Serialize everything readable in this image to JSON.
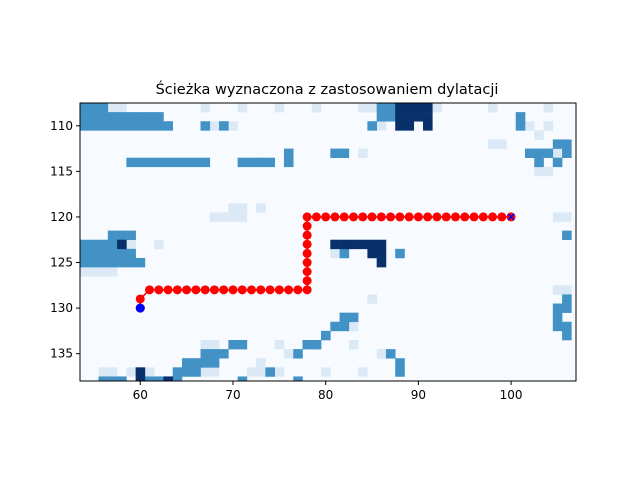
{
  "chart_data": {
    "type": "heatmap",
    "title": "Ścieżka wyznaczona z zastosowaniem dylatacji",
    "xlabel": "",
    "ylabel": "",
    "xlim": [
      53.5,
      107
    ],
    "ylim": [
      138,
      107.5
    ],
    "x_ticks": [
      60,
      70,
      80,
      90,
      100
    ],
    "y_ticks": [
      110,
      115,
      120,
      125,
      130,
      135
    ],
    "grid": false,
    "colormap": "Blues",
    "colors": {
      "background": "#f7fbff",
      "light": "#dbe9f6",
      "medium": "#4292c6",
      "dark": "#08306b",
      "path": "#ff0000",
      "start": "#0000ff",
      "goal": "#0000ff"
    },
    "cells": {
      "light": [
        [
          56,
          108
        ],
        [
          57,
          108
        ],
        [
          58,
          108
        ],
        [
          67,
          108
        ],
        [
          71,
          108
        ],
        [
          75,
          108
        ],
        [
          79,
          108
        ],
        [
          84,
          108
        ],
        [
          85,
          108
        ],
        [
          87,
          108
        ],
        [
          92,
          108
        ],
        [
          98,
          108
        ],
        [
          104,
          108
        ],
        [
          68,
          110
        ],
        [
          70,
          110
        ],
        [
          86,
          110
        ],
        [
          102,
          110
        ],
        [
          104,
          110
        ],
        [
          103,
          111
        ],
        [
          98,
          112
        ],
        [
          99,
          112
        ],
        [
          84,
          113
        ],
        [
          105,
          113
        ],
        [
          73,
          114
        ],
        [
          103,
          115
        ],
        [
          104,
          115
        ],
        [
          70,
          119
        ],
        [
          71,
          119
        ],
        [
          73,
          119
        ],
        [
          68,
          120
        ],
        [
          69,
          120
        ],
        [
          70,
          120
        ],
        [
          71,
          120
        ],
        [
          105,
          120
        ],
        [
          106,
          120
        ],
        [
          62,
          123
        ],
        [
          59,
          123
        ],
        [
          81,
          124
        ],
        [
          54,
          126
        ],
        [
          55,
          126
        ],
        [
          56,
          126
        ],
        [
          57,
          126
        ],
        [
          105,
          128
        ],
        [
          106,
          128
        ],
        [
          85,
          129
        ],
        [
          83,
          132
        ],
        [
          80,
          133
        ],
        [
          67,
          134
        ],
        [
          68,
          134
        ],
        [
          75,
          134
        ],
        [
          79,
          134
        ],
        [
          83,
          134
        ],
        [
          76,
          135
        ],
        [
          86,
          135
        ],
        [
          65,
          136
        ],
        [
          66,
          136
        ],
        [
          73,
          136
        ],
        [
          56,
          137
        ],
        [
          57,
          137
        ],
        [
          59,
          137
        ],
        [
          61,
          137
        ],
        [
          64,
          137
        ],
        [
          67,
          137
        ],
        [
          68,
          137
        ],
        [
          72,
          137
        ],
        [
          73,
          137
        ],
        [
          75,
          137
        ],
        [
          80,
          137
        ],
        [
          84,
          137
        ],
        [
          88,
          137
        ]
      ],
      "medium": [
        [
          54,
          108
        ],
        [
          55,
          108
        ],
        [
          56,
          108
        ],
        [
          86,
          108
        ],
        [
          87,
          108
        ],
        [
          54,
          109
        ],
        [
          55,
          109
        ],
        [
          56,
          109
        ],
        [
          57,
          109
        ],
        [
          58,
          109
        ],
        [
          59,
          109
        ],
        [
          60,
          109
        ],
        [
          61,
          109
        ],
        [
          62,
          109
        ],
        [
          86,
          109
        ],
        [
          87,
          109
        ],
        [
          54,
          110
        ],
        [
          55,
          110
        ],
        [
          56,
          110
        ],
        [
          57,
          110
        ],
        [
          58,
          110
        ],
        [
          59,
          110
        ],
        [
          60,
          110
        ],
        [
          61,
          110
        ],
        [
          62,
          110
        ],
        [
          63,
          110
        ],
        [
          67,
          110
        ],
        [
          69,
          110
        ],
        [
          85,
          110
        ],
        [
          101,
          110
        ],
        [
          101,
          109
        ],
        [
          105,
          112
        ],
        [
          106,
          112
        ],
        [
          102,
          113
        ],
        [
          103,
          113
        ],
        [
          104,
          113
        ],
        [
          106,
          113
        ],
        [
          59,
          114
        ],
        [
          60,
          114
        ],
        [
          61,
          114
        ],
        [
          62,
          114
        ],
        [
          63,
          114
        ],
        [
          64,
          114
        ],
        [
          65,
          114
        ],
        [
          66,
          114
        ],
        [
          67,
          114
        ],
        [
          71,
          114
        ],
        [
          72,
          114
        ],
        [
          73,
          114
        ],
        [
          74,
          114
        ],
        [
          76,
          114
        ],
        [
          103,
          114
        ],
        [
          105,
          114
        ],
        [
          76,
          113
        ],
        [
          81,
          113
        ],
        [
          82,
          113
        ],
        [
          57,
          122
        ],
        [
          58,
          122
        ],
        [
          59,
          122
        ],
        [
          54,
          123
        ],
        [
          55,
          123
        ],
        [
          56,
          123
        ],
        [
          57,
          123
        ],
        [
          54,
          124
        ],
        [
          55,
          124
        ],
        [
          56,
          124
        ],
        [
          57,
          124
        ],
        [
          58,
          124
        ],
        [
          59,
          124
        ],
        [
          82,
          124
        ],
        [
          88,
          124
        ],
        [
          54,
          125
        ],
        [
          55,
          125
        ],
        [
          56,
          125
        ],
        [
          57,
          125
        ],
        [
          58,
          125
        ],
        [
          59,
          125
        ],
        [
          60,
          125
        ],
        [
          106,
          122
        ],
        [
          106,
          129
        ],
        [
          106,
          130
        ],
        [
          105,
          130
        ],
        [
          105,
          131
        ],
        [
          105,
          132
        ],
        [
          106,
          132
        ],
        [
          106,
          133
        ],
        [
          82,
          131
        ],
        [
          83,
          131
        ],
        [
          81,
          132
        ],
        [
          82,
          132
        ],
        [
          80,
          133
        ],
        [
          79,
          134
        ],
        [
          70,
          134
        ],
        [
          71,
          134
        ],
        [
          78,
          134
        ],
        [
          67,
          135
        ],
        [
          68,
          135
        ],
        [
          69,
          135
        ],
        [
          77,
          135
        ],
        [
          87,
          135
        ],
        [
          65,
          136
        ],
        [
          66,
          136
        ],
        [
          67,
          136
        ],
        [
          68,
          136
        ],
        [
          88,
          136
        ],
        [
          64,
          137
        ],
        [
          65,
          137
        ],
        [
          66,
          137
        ],
        [
          74,
          137
        ],
        [
          88,
          137
        ],
        [
          56,
          138
        ],
        [
          57,
          138
        ],
        [
          58,
          138
        ],
        [
          61,
          138
        ],
        [
          62,
          138
        ],
        [
          63,
          138
        ],
        [
          64,
          138
        ],
        [
          71,
          138
        ],
        [
          77,
          138
        ]
      ],
      "dark": [
        [
          88,
          108
        ],
        [
          89,
          108
        ],
        [
          90,
          108
        ],
        [
          91,
          108
        ],
        [
          88,
          109
        ],
        [
          89,
          109
        ],
        [
          90,
          109
        ],
        [
          91,
          109
        ],
        [
          88,
          110
        ],
        [
          89,
          110
        ],
        [
          91,
          110
        ],
        [
          53,
          120
        ],
        [
          53,
          121
        ],
        [
          81,
          123
        ],
        [
          82,
          123
        ],
        [
          83,
          123
        ],
        [
          84,
          123
        ],
        [
          85,
          123
        ],
        [
          86,
          123
        ],
        [
          85,
          124
        ],
        [
          86,
          124
        ],
        [
          86,
          125
        ],
        [
          58,
          123
        ],
        [
          60,
          137
        ],
        [
          60,
          138
        ],
        [
          63,
          138
        ]
      ]
    },
    "series": [
      {
        "type": "line",
        "x": [
          60,
          60,
          61,
          62,
          63,
          64,
          65,
          66,
          67,
          68,
          69,
          70,
          71,
          72,
          73,
          74,
          75,
          76,
          77,
          78,
          78,
          78,
          78,
          78,
          78,
          78,
          78,
          78,
          79,
          80,
          81,
          82,
          83,
          84,
          85,
          86,
          87,
          88,
          89,
          90,
          91,
          92,
          93,
          94,
          95,
          96,
          97,
          98,
          99,
          100
        ],
        "y": [
          130,
          129,
          128,
          128,
          128,
          128,
          128,
          128,
          128,
          128,
          128,
          128,
          128,
          128,
          128,
          128,
          128,
          128,
          128,
          128,
          127,
          126,
          125,
          124,
          123,
          122,
          121,
          120,
          120,
          120,
          120,
          120,
          120,
          120,
          120,
          120,
          120,
          120,
          120,
          120,
          120,
          120,
          120,
          120,
          120,
          120,
          120,
          120,
          120,
          120
        ]
      }
    ],
    "start": {
      "x": 60,
      "y": 130
    },
    "goal": {
      "x": 100,
      "y": 120
    }
  }
}
